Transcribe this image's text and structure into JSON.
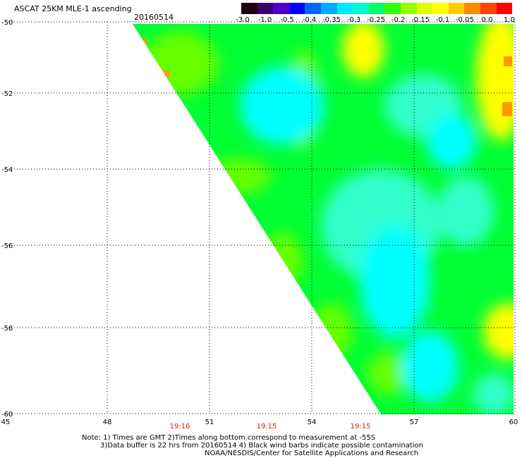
{
  "header": {
    "title": "ASCAT 25KM MLE-1 ascending",
    "date": "20160514"
  },
  "colorbar": {
    "labels": [
      "-3.0",
      "-1.0",
      "-0.5",
      "-0.4",
      "-0.35",
      "-0.3",
      "-0.25",
      "-0.2",
      "-0.15",
      "-0.1",
      "-0.05",
      "0.0",
      "1.0"
    ],
    "colors": [
      "#1a0010",
      "#3a0070",
      "#5000c8",
      "#0000ff",
      "#0066ff",
      "#00aaff",
      "#00e8ff",
      "#00ffcc",
      "#00ff66",
      "#33ff00",
      "#99ff00",
      "#ddff00",
      "#ffff00",
      "#ffcc00",
      "#ff8800",
      "#ff4400",
      "#ff0000"
    ]
  },
  "axes": {
    "y_ticks": [
      "-50",
      "-52",
      "-54",
      "-56",
      "-58",
      "-60"
    ],
    "x_ticks": [
      "45",
      "48",
      "51",
      "54",
      "57",
      "60"
    ]
  },
  "times": [
    "19:16",
    "19:15",
    "19:15"
  ],
  "notes": {
    "line1": "Note: 1) Times are GMT 2)Times along bottom correspond to measurement at -55S",
    "line2": "3)Data buffer is 22 hrs from 20160514 4) Black wind barbs indicate possible contamination",
    "line3": "NOAA/NESDIS/Center for Satellite Applications and Research"
  },
  "map_colors": {
    "cyan": "#00ffff",
    "aqua": "#33ffcc",
    "green": "#00ff33",
    "lime": "#66ff00",
    "yellow": "#ffff00",
    "orange": "#ff9900"
  }
}
